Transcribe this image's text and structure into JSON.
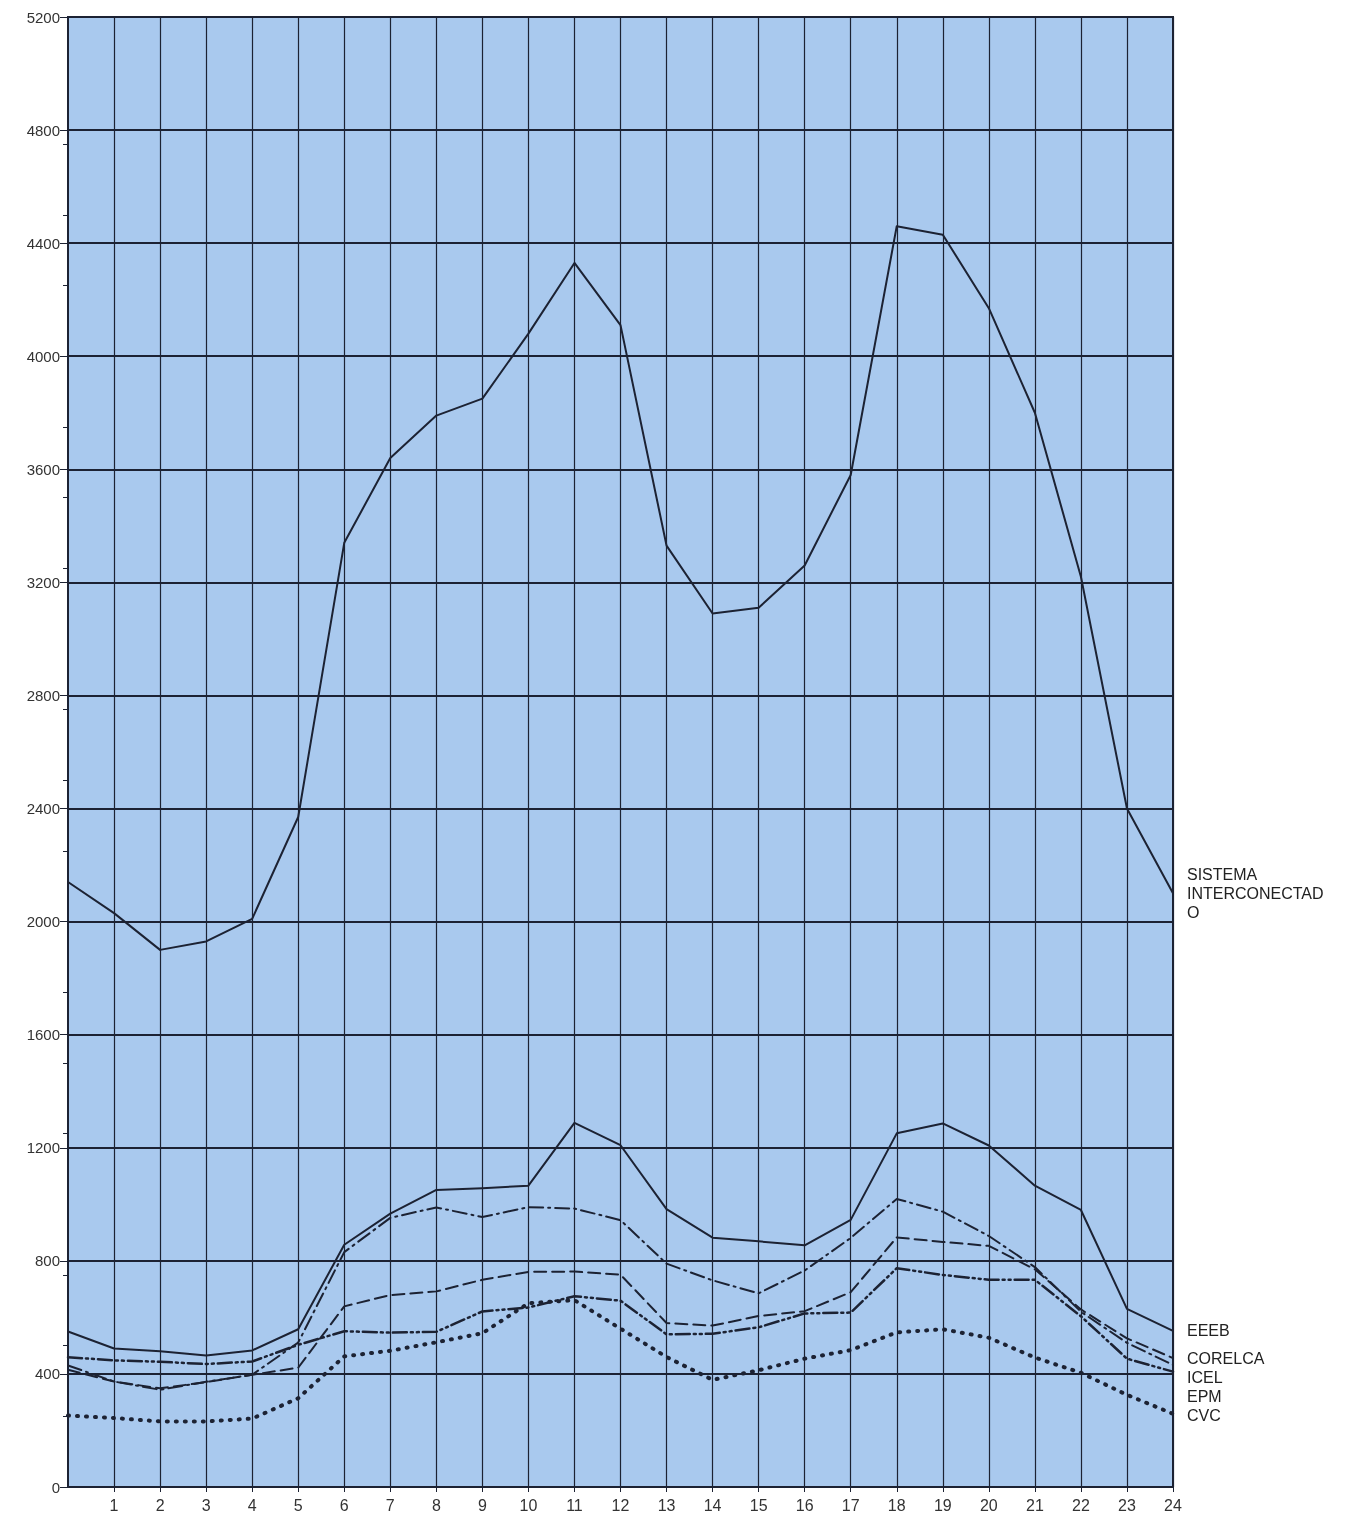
{
  "chart_data": {
    "type": "line",
    "x": [
      0,
      1,
      2,
      3,
      4,
      5,
      6,
      7,
      8,
      9,
      10,
      11,
      12,
      13,
      14,
      15,
      16,
      17,
      18,
      19,
      20,
      21,
      22,
      23,
      24
    ],
    "series": [
      {
        "name": "SISTEMA INTERCONECTADO",
        "color": "#1c2233",
        "line_style": "solid",
        "values": [
          2140,
          2030,
          1900,
          1930,
          2010,
          2370,
          3340,
          3640,
          3790,
          3850,
          4080,
          4330,
          4110,
          3330,
          3090,
          3110,
          3260,
          3580,
          4460,
          4430,
          4170,
          3800,
          3220,
          2400,
          2100
        ]
      },
      {
        "name": "EEEB",
        "color": "#1c2233",
        "line_style": "solid",
        "values": [
          550,
          490,
          480,
          465,
          483,
          558,
          857,
          967,
          1051,
          1057,
          1066,
          1288,
          1209,
          983,
          882,
          869,
          855,
          945,
          1251,
          1286,
          1208,
          1066,
          980,
          630,
          552
        ]
      },
      {
        "name": "CORELCA",
        "color": "#1c2233",
        "line_style": "dashed",
        "values": [
          415,
          373,
          349,
          371,
          397,
          422,
          639,
          679,
          692,
          733,
          761,
          762,
          751,
          580,
          571,
          605,
          622,
          689,
          883,
          867,
          853,
          770,
          628,
          526,
          456
        ]
      },
      {
        "name": "ICEL",
        "color": "#1c2233",
        "line_style": "dashdot",
        "values": [
          430,
          373,
          344,
          372,
          397,
          511,
          831,
          952,
          989,
          955,
          990,
          985,
          944,
          790,
          731,
          685,
          766,
          881,
          1019,
          974,
          888,
          778,
          620,
          510,
          432
        ]
      },
      {
        "name": "EPM",
        "color": "#1c2233",
        "line_style": "dashdotdot",
        "values": [
          459,
          448,
          443,
          435,
          444,
          503,
          551,
          546,
          549,
          621,
          635,
          675,
          659,
          540,
          542,
          565,
          614,
          617,
          774,
          750,
          733,
          733,
          604,
          454,
          408
        ]
      },
      {
        "name": "CVC",
        "color": "#1c2233",
        "line_style": "dotted",
        "values": [
          253,
          244,
          232,
          232,
          242,
          314,
          462,
          482,
          512,
          544,
          650,
          661,
          560,
          460,
          379,
          413,
          454,
          484,
          547,
          558,
          528,
          458,
          404,
          326,
          259
        ]
      }
    ],
    "xlim": [
      0,
      24
    ],
    "xticks": [
      1,
      2,
      3,
      4,
      5,
      6,
      7,
      8,
      9,
      10,
      11,
      12,
      13,
      14,
      15,
      16,
      17,
      18,
      19,
      20,
      21,
      22,
      23,
      24
    ],
    "ylim": [
      0,
      5200
    ],
    "yticks": [
      0,
      400,
      800,
      1200,
      1600,
      2000,
      2400,
      2800,
      3200,
      3600,
      4000,
      4400,
      4800,
      5200
    ],
    "grid": true,
    "legend": false,
    "marker": "none"
  }
}
